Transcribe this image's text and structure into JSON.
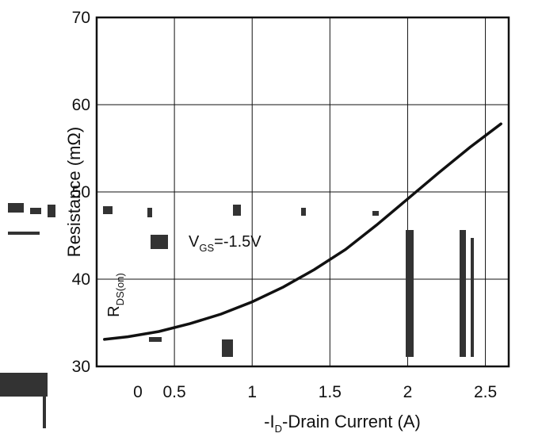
{
  "chart_data": {
    "type": "line",
    "title": "",
    "xlabel": "-I",
    "xlabel_sub": "D",
    "xlabel_rest": "-Drain Current (A)",
    "ylabel": "Resistance (mΩ)",
    "xlim": [
      0,
      2.65
    ],
    "ylim": [
      30,
      70
    ],
    "x_ticks": [
      "0",
      "0.5",
      "1",
      "1.5",
      "2",
      "2.5"
    ],
    "x_tick_values": [
      0,
      0.5,
      1,
      1.5,
      2,
      2.5
    ],
    "y_ticks": [
      "30",
      "40",
      "50",
      "60",
      "70"
    ],
    "y_tick_values": [
      30,
      40,
      50,
      60,
      70
    ],
    "grid": true,
    "annotation": {
      "text": "V",
      "sub": "GS",
      "rest": "=-1.5V"
    },
    "series": [
      {
        "label": "R",
        "label_sub": "DS(on)",
        "x": [
          0.05,
          0.2,
          0.4,
          0.6,
          0.8,
          1.0,
          1.2,
          1.4,
          1.6,
          1.8,
          2.0,
          2.2,
          2.4,
          2.6
        ],
        "y": [
          33.1,
          33.4,
          34.0,
          34.9,
          36.0,
          37.4,
          39.1,
          41.1,
          43.4,
          46.2,
          49.2,
          52.2,
          55.1,
          57.8
        ]
      }
    ]
  }
}
